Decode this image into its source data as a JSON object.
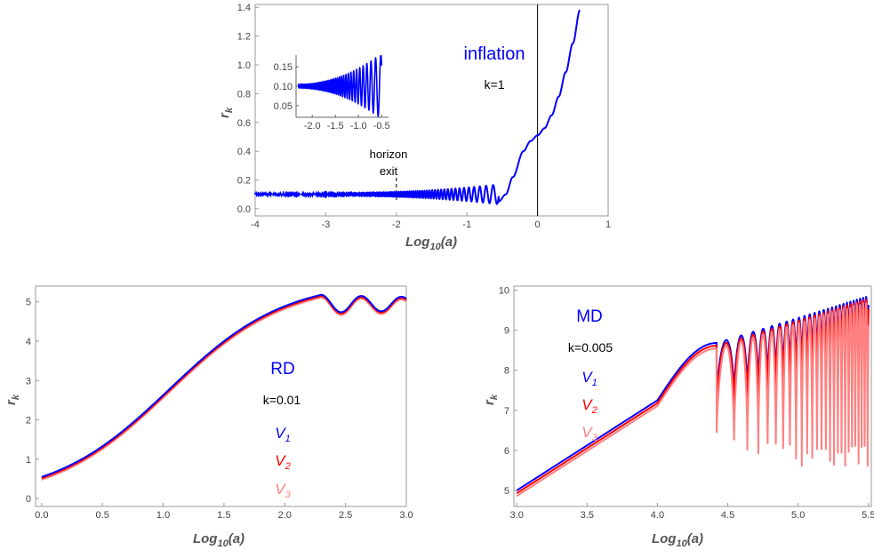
{
  "chart_data": [
    {
      "id": "inflation",
      "type": "line",
      "xlabel": "Log10(a)",
      "ylabel": "rk",
      "xlim": [
        -4,
        1
      ],
      "ylim": [
        -0.05,
        1.42
      ],
      "xticks": [
        "-4",
        "-3",
        "-2",
        "-1",
        "0",
        "1"
      ],
      "yticks": [
        "0.0",
        "0.2",
        "0.4",
        "0.6",
        "0.8",
        "1.0",
        "1.2",
        "1.4"
      ],
      "series": [
        {
          "color": "#0000ff",
          "description": "oscillations about 0.1 with growing amplitude, then rise",
          "x": [
            -4.0,
            -3.0,
            -2.0,
            -1.5,
            -1.0,
            -0.7,
            -0.55,
            -0.35,
            -0.2,
            0.0,
            0.2,
            0.4,
            0.6
          ],
          "y": [
            0.1,
            0.1,
            0.1,
            0.1,
            0.1,
            0.12,
            0.1,
            0.22,
            0.4,
            0.51,
            0.65,
            0.95,
            1.38
          ]
        }
      ],
      "annotations": [
        {
          "text": "inflation",
          "color": "#0000ff"
        },
        {
          "text": "k=1",
          "color": "#000000"
        },
        {
          "text": "horizon",
          "color": "#000000"
        },
        {
          "text": "exit",
          "color": "#000000"
        }
      ],
      "vertical_lines": [
        {
          "x": 0,
          "style": "solid"
        },
        {
          "x": -2,
          "style": "dashed"
        }
      ],
      "inset": {
        "xlim": [
          -2.35,
          -0.35
        ],
        "ylim": [
          0.02,
          0.18
        ],
        "xticks": [
          "-2.0",
          "-1.5",
          "-1.0",
          "-0.5"
        ],
        "yticks": [
          "0.05",
          "0.10",
          "0.15"
        ]
      }
    },
    {
      "id": "rd",
      "type": "line",
      "xlabel": "Log10(a)",
      "ylabel": "rk",
      "xlim": [
        -0.05,
        3.0
      ],
      "ylim": [
        -0.2,
        5.4
      ],
      "xticks": [
        "0.0",
        "0.5",
        "1.0",
        "1.5",
        "2.0",
        "2.5",
        "3.0"
      ],
      "yticks": [
        "0",
        "1",
        "2",
        "3",
        "4",
        "5"
      ],
      "series": [
        {
          "name": "V1",
          "color": "#0000ff",
          "x": [
            0.0,
            0.2,
            0.5,
            1.0,
            1.5,
            2.0,
            2.2,
            2.3,
            2.4,
            2.5,
            2.6,
            2.7,
            2.8,
            2.9,
            3.0
          ],
          "y": [
            0.55,
            0.8,
            1.62,
            2.95,
            4.17,
            5.05,
            5.17,
            5.18,
            5.12,
            4.98,
            4.85,
            5.02,
            4.9,
            5.0,
            4.9
          ]
        },
        {
          "name": "V2",
          "color": "#ff0000",
          "x": [
            0.0,
            0.2,
            0.5,
            1.0,
            1.5,
            2.0,
            2.2,
            2.3,
            2.4,
            2.5,
            2.6,
            2.7,
            2.8,
            2.9,
            3.0
          ],
          "y": [
            0.52,
            0.77,
            1.58,
            2.92,
            4.13,
            5.02,
            5.14,
            5.15,
            5.09,
            4.95,
            4.83,
            4.99,
            4.88,
            4.97,
            4.88
          ]
        },
        {
          "name": "V3",
          "color": "#ff8080",
          "x": [
            0.0,
            0.2,
            0.5,
            1.0,
            1.5,
            2.0,
            2.2,
            2.3,
            2.4,
            2.5,
            2.6,
            2.7,
            2.8,
            2.9,
            3.0
          ],
          "y": [
            0.48,
            0.73,
            1.54,
            2.88,
            4.09,
            4.98,
            5.1,
            5.11,
            5.05,
            4.91,
            4.8,
            4.96,
            4.85,
            4.94,
            4.85
          ]
        }
      ],
      "annotations": [
        {
          "text": "RD",
          "color": "#0000ff"
        },
        {
          "text": "k=0.01",
          "color": "#000000"
        }
      ]
    },
    {
      "id": "md",
      "type": "line",
      "xlabel": "Log10(a)",
      "ylabel": "rk",
      "xlim": [
        2.98,
        5.52
      ],
      "ylim": [
        4.6,
        10.1
      ],
      "xticks": [
        "3.0",
        "3.5",
        "4.0",
        "4.5",
        "5.0",
        "5.5"
      ],
      "yticks": [
        "5",
        "6",
        "7",
        "8",
        "9",
        "10"
      ],
      "series": [
        {
          "name": "V1",
          "color": "#0000ff",
          "x": [
            3.0,
            3.5,
            4.0,
            4.2,
            4.4,
            4.55,
            4.6,
            5.0,
            5.5
          ],
          "y": [
            5.0,
            6.05,
            7.25,
            7.95,
            8.68,
            6.7,
            8.9,
            9.3,
            9.85
          ]
        },
        {
          "name": "V2",
          "color": "#ff0000",
          "x": [
            3.0,
            3.5,
            4.0,
            4.2,
            4.4,
            4.55,
            4.6,
            5.0,
            5.5
          ],
          "y": [
            4.93,
            5.98,
            7.18,
            7.88,
            8.61,
            6.65,
            8.83,
            9.23,
            9.78
          ]
        },
        {
          "name": "V3",
          "color": "#ff8080",
          "x": [
            3.0,
            3.5,
            4.0,
            4.2,
            4.4,
            4.55,
            4.6,
            5.0,
            5.5
          ],
          "y": [
            4.86,
            5.91,
            7.11,
            7.81,
            8.54,
            6.6,
            8.76,
            9.16,
            9.71
          ]
        }
      ],
      "annotations": [
        {
          "text": "MD",
          "color": "#0000ff"
        },
        {
          "text": "k=0.005",
          "color": "#000000"
        }
      ]
    }
  ]
}
